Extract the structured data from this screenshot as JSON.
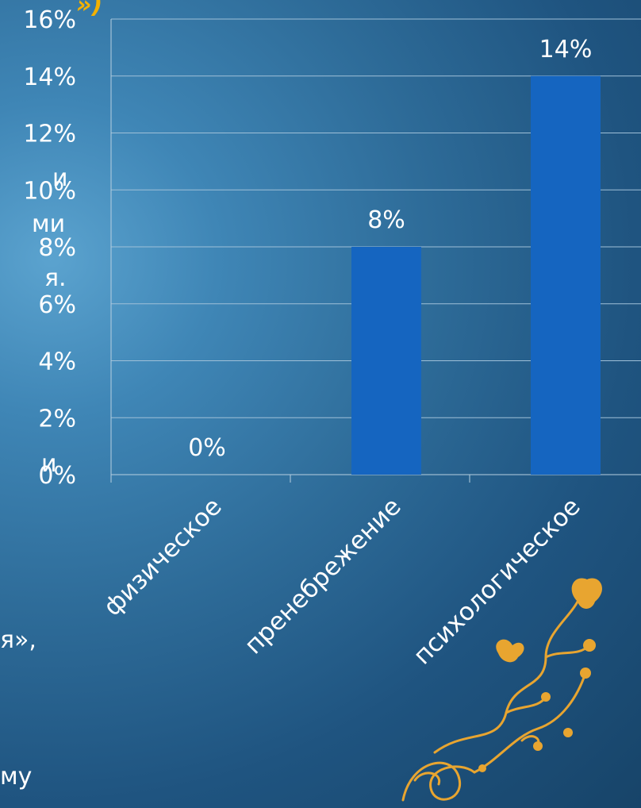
{
  "chart_data": {
    "type": "bar",
    "categories": [
      "физическое",
      "пренебрежение",
      "психологическое"
    ],
    "values": [
      0,
      8,
      14
    ],
    "data_labels": [
      "0%",
      "8%",
      "14%"
    ],
    "ylim": [
      0,
      16
    ],
    "yticks": [
      "0%",
      "2%",
      "4%",
      "6%",
      "8%",
      "10%",
      "12%",
      "14%",
      "16%"
    ],
    "title": "",
    "xlabel": "",
    "ylabel": "",
    "grid": true,
    "legend": "none",
    "bar_color": "#1565c0"
  },
  "background_text": {
    "title_fragment": "»)",
    "line1": "и",
    "line2": "ми",
    "line3": "я.",
    "line4": "и",
    "line5": "я»,",
    "line6": "му"
  },
  "decoration": {
    "ornament_icon": "gold-floral-ornament-icon",
    "colors": {
      "gold": "#e8a530",
      "bg_light": "#5ba3cf",
      "bg_dark": "#174469"
    }
  }
}
